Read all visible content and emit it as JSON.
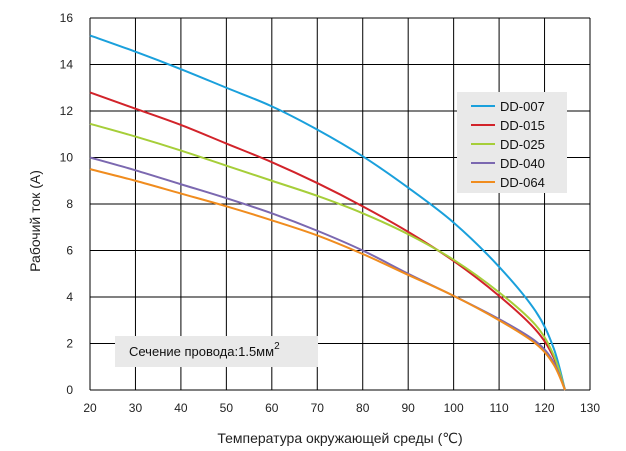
{
  "chart_data": {
    "type": "line",
    "xlabel": "Температура окружающей среды (℃)",
    "ylabel": "Рабочий ток (A)",
    "xlim": [
      20,
      130
    ],
    "ylim": [
      0,
      16
    ],
    "x_ticks": [
      20,
      30,
      40,
      50,
      60,
      70,
      80,
      90,
      100,
      110,
      120,
      130
    ],
    "y_ticks": [
      0,
      2,
      4,
      6,
      8,
      10,
      12,
      14,
      16
    ],
    "grid": true,
    "legend_position": "upper-right",
    "annotation": {
      "text": "Сечение провода:1.5мм",
      "superscript": "2"
    },
    "series": [
      {
        "name": "DD-007",
        "color": "#1aa0dc",
        "points": [
          [
            20,
            15.25
          ],
          [
            30,
            14.55
          ],
          [
            40,
            13.8
          ],
          [
            50,
            13.0
          ],
          [
            60,
            12.2
          ],
          [
            70,
            11.2
          ],
          [
            80,
            10.05
          ],
          [
            90,
            8.7
          ],
          [
            100,
            7.2
          ],
          [
            110,
            5.3
          ],
          [
            118,
            3.4
          ],
          [
            122,
            1.8
          ],
          [
            124.5,
            0
          ]
        ]
      },
      {
        "name": "DD-015",
        "color": "#d2232a",
        "points": [
          [
            20,
            12.8
          ],
          [
            30,
            12.1
          ],
          [
            40,
            11.4
          ],
          [
            50,
            10.6
          ],
          [
            60,
            9.8
          ],
          [
            70,
            8.9
          ],
          [
            80,
            7.9
          ],
          [
            90,
            6.8
          ],
          [
            100,
            5.55
          ],
          [
            110,
            4.05
          ],
          [
            118,
            2.6
          ],
          [
            122,
            1.4
          ],
          [
            124.5,
            0
          ]
        ]
      },
      {
        "name": "DD-025",
        "color": "#a6ce39",
        "points": [
          [
            20,
            11.45
          ],
          [
            30,
            10.9
          ],
          [
            40,
            10.3
          ],
          [
            50,
            9.65
          ],
          [
            60,
            9.0
          ],
          [
            70,
            8.35
          ],
          [
            80,
            7.6
          ],
          [
            90,
            6.7
          ],
          [
            100,
            5.6
          ],
          [
            110,
            4.2
          ],
          [
            118,
            2.8
          ],
          [
            122,
            1.5
          ],
          [
            124.5,
            0
          ]
        ]
      },
      {
        "name": "DD-040",
        "color": "#7b68b0",
        "points": [
          [
            20,
            10.0
          ],
          [
            30,
            9.45
          ],
          [
            40,
            8.85
          ],
          [
            50,
            8.25
          ],
          [
            60,
            7.6
          ],
          [
            70,
            6.85
          ],
          [
            80,
            6.0
          ],
          [
            90,
            5.0
          ],
          [
            100,
            4.05
          ],
          [
            110,
            3.05
          ],
          [
            118,
            2.1
          ],
          [
            122,
            1.2
          ],
          [
            124.5,
            0
          ]
        ]
      },
      {
        "name": "DD-064",
        "color": "#f08c1e",
        "points": [
          [
            20,
            9.5
          ],
          [
            30,
            9.0
          ],
          [
            40,
            8.45
          ],
          [
            50,
            7.9
          ],
          [
            60,
            7.3
          ],
          [
            70,
            6.65
          ],
          [
            80,
            5.85
          ],
          [
            90,
            4.95
          ],
          [
            100,
            4.05
          ],
          [
            110,
            3.0
          ],
          [
            118,
            2.0
          ],
          [
            122,
            1.1
          ],
          [
            124.5,
            0
          ]
        ]
      }
    ]
  }
}
